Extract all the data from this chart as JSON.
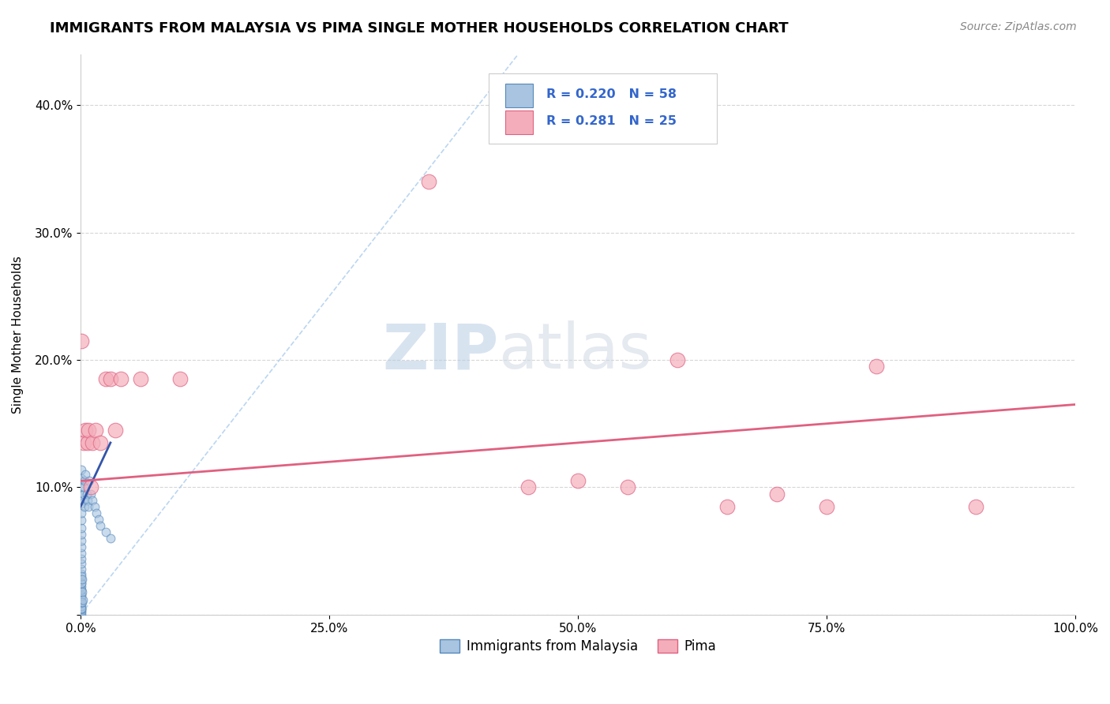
{
  "title": "IMMIGRANTS FROM MALAYSIA VS PIMA SINGLE MOTHER HOUSEHOLDS CORRELATION CHART",
  "source": "Source: ZipAtlas.com",
  "xlabel": "",
  "ylabel": "Single Mother Households",
  "watermark_zip": "ZIP",
  "watermark_atlas": "atlas",
  "xlim": [
    0,
    1.0
  ],
  "ylim": [
    0,
    0.44
  ],
  "xtick_vals": [
    0.0,
    0.25,
    0.5,
    0.75,
    1.0
  ],
  "xtick_labels": [
    "0.0%",
    "25.0%",
    "50.0%",
    "75.0%",
    "100.0%"
  ],
  "ytick_vals": [
    0.0,
    0.1,
    0.2,
    0.3,
    0.4
  ],
  "ytick_labels": [
    "",
    "10.0%",
    "20.0%",
    "30.0%",
    "40.0%"
  ],
  "blue_R": 0.22,
  "blue_N": 58,
  "pink_R": 0.281,
  "pink_N": 25,
  "blue_color": "#A8C4E0",
  "pink_color": "#F4AEBB",
  "blue_edge_color": "#5588BB",
  "pink_edge_color": "#E06080",
  "blue_line_color": "#3355AA",
  "pink_line_color": "#E06080",
  "legend_label_blue": "Immigrants from Malaysia",
  "legend_label_pink": "Pima",
  "blue_scatter_x": [
    0.0005,
    0.0005,
    0.0005,
    0.0005,
    0.0005,
    0.0005,
    0.0005,
    0.0005,
    0.0005,
    0.0005,
    0.0005,
    0.0005,
    0.0005,
    0.0005,
    0.0005,
    0.0005,
    0.0005,
    0.0005,
    0.0005,
    0.0005,
    0.0005,
    0.0005,
    0.0005,
    0.0005,
    0.0005,
    0.0005,
    0.0005,
    0.0005,
    0.0005,
    0.0005,
    0.001,
    0.001,
    0.001,
    0.001,
    0.001,
    0.001,
    0.0015,
    0.0015,
    0.0015,
    0.002,
    0.002,
    0.003,
    0.003,
    0.004,
    0.004,
    0.005,
    0.006,
    0.007,
    0.008,
    0.009,
    0.01,
    0.012,
    0.014,
    0.016,
    0.018,
    0.02,
    0.025,
    0.03
  ],
  "blue_scatter_y": [
    0.0,
    0.002,
    0.003,
    0.004,
    0.005,
    0.007,
    0.009,
    0.011,
    0.013,
    0.016,
    0.019,
    0.022,
    0.025,
    0.028,
    0.032,
    0.036,
    0.04,
    0.044,
    0.048,
    0.053,
    0.058,
    0.063,
    0.068,
    0.074,
    0.08,
    0.087,
    0.094,
    0.1,
    0.107,
    0.114,
    0.005,
    0.01,
    0.015,
    0.02,
    0.025,
    0.03,
    0.01,
    0.018,
    0.028,
    0.012,
    0.09,
    0.095,
    0.1,
    0.085,
    0.105,
    0.11,
    0.095,
    0.09,
    0.085,
    0.105,
    0.095,
    0.09,
    0.085,
    0.08,
    0.075,
    0.07,
    0.065,
    0.06
  ],
  "pink_scatter_x": [
    0.001,
    0.003,
    0.005,
    0.007,
    0.008,
    0.01,
    0.012,
    0.015,
    0.02,
    0.025,
    0.03,
    0.035,
    0.04,
    0.06,
    0.1,
    0.35,
    0.45,
    0.5,
    0.55,
    0.6,
    0.65,
    0.7,
    0.75,
    0.8,
    0.9
  ],
  "pink_scatter_y": [
    0.215,
    0.135,
    0.145,
    0.135,
    0.145,
    0.1,
    0.135,
    0.145,
    0.135,
    0.185,
    0.185,
    0.145,
    0.185,
    0.185,
    0.185,
    0.34,
    0.1,
    0.105,
    0.1,
    0.2,
    0.085,
    0.095,
    0.085,
    0.195,
    0.085
  ]
}
